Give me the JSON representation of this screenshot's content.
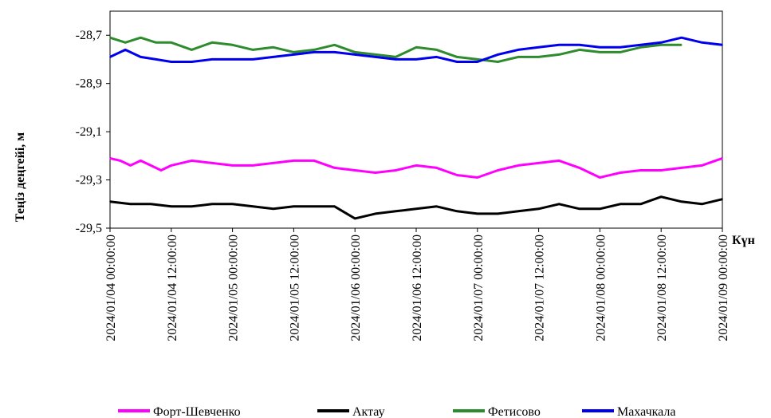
{
  "chart_data": {
    "type": "line",
    "title": "",
    "ylabel": "Теңіз деңгейі, м",
    "xlabel": "Күн",
    "ylim": [
      -29.5,
      -28.6
    ],
    "yticks": [
      -28.7,
      -28.9,
      -29.1,
      -29.3,
      -29.5
    ],
    "ytick_labels": [
      "-28,7",
      "-28,9",
      "-29,1",
      "-29,3",
      "-29,5"
    ],
    "xlim": [
      0,
      120
    ],
    "xtick_labels": [
      "2024/01/04 00:00:00",
      "2024/01/04 12:00:00",
      "2024/01/05 00:00:00",
      "2024/01/05 12:00:00",
      "2024/01/06 00:00:00",
      "2024/01/06 12:00:00",
      "2024/01/07 00:00:00",
      "2024/01/07 12:00:00",
      "2024/01/08 00:00:00",
      "2024/01/08 12:00:00",
      "2024/01/09 00:00:00"
    ],
    "grid": false,
    "legend_position": "bottom",
    "series": [
      {
        "name": "Форт-Шевченко",
        "color": "#ff00ff",
        "x": [
          0,
          2,
          4,
          6,
          8,
          10,
          12,
          16,
          20,
          24,
          28,
          32,
          36,
          40,
          44,
          48,
          52,
          56,
          60,
          64,
          68,
          72,
          76,
          80,
          84,
          88,
          92,
          94,
          96,
          100,
          104,
          108,
          112,
          116,
          120
        ],
        "y": [
          -29.21,
          -29.22,
          -29.24,
          -29.22,
          -29.24,
          -29.26,
          -29.24,
          -29.22,
          -29.23,
          -29.24,
          -29.24,
          -29.23,
          -29.22,
          -29.22,
          -29.25,
          -29.26,
          -29.27,
          -29.26,
          -29.24,
          -29.25,
          -29.28,
          -29.29,
          -29.26,
          -29.24,
          -29.23,
          -29.22,
          -29.25,
          -29.27,
          -29.29,
          -29.27,
          -29.26,
          -29.26,
          -29.25,
          -29.24,
          -29.21
        ]
      },
      {
        "name": "Актау",
        "color": "#000000",
        "x": [
          0,
          4,
          8,
          12,
          16,
          20,
          24,
          28,
          32,
          36,
          40,
          44,
          48,
          52,
          56,
          60,
          64,
          68,
          72,
          76,
          80,
          84,
          88,
          92,
          96,
          100,
          104,
          108,
          112,
          116,
          120
        ],
        "y": [
          -29.39,
          -29.4,
          -29.4,
          -29.41,
          -29.41,
          -29.4,
          -29.4,
          -29.41,
          -29.42,
          -29.41,
          -29.41,
          -29.41,
          -29.46,
          -29.44,
          -29.43,
          -29.42,
          -29.41,
          -29.43,
          -29.44,
          -29.44,
          -29.43,
          -29.42,
          -29.4,
          -29.42,
          -29.42,
          -29.4,
          -29.4,
          -29.37,
          -29.39,
          -29.4,
          -29.38
        ]
      },
      {
        "name": "Фетисово",
        "color": "#2e8b2e",
        "x": [
          0,
          3,
          6,
          9,
          12,
          16,
          20,
          24,
          28,
          32,
          36,
          40,
          44,
          48,
          52,
          56,
          60,
          64,
          68,
          72,
          76,
          80,
          84,
          88,
          92,
          96,
          100,
          104,
          108,
          112
        ],
        "y": [
          -28.71,
          -28.73,
          -28.71,
          -28.73,
          -28.73,
          -28.76,
          -28.73,
          -28.74,
          -28.76,
          -28.75,
          -28.77,
          -28.76,
          -28.74,
          -28.77,
          -28.78,
          -28.79,
          -28.75,
          -28.76,
          -28.79,
          -28.8,
          -28.81,
          -28.79,
          -28.79,
          -28.78,
          -28.76,
          -28.77,
          -28.77,
          -28.75,
          -28.74,
          -28.74
        ]
      },
      {
        "name": "Махачкала",
        "color": "#0000ee",
        "x": [
          0,
          3,
          6,
          9,
          12,
          16,
          20,
          24,
          28,
          32,
          36,
          40,
          44,
          48,
          52,
          56,
          60,
          64,
          68,
          72,
          76,
          80,
          84,
          88,
          92,
          96,
          100,
          104,
          108,
          112,
          116,
          120
        ],
        "y": [
          -28.79,
          -28.76,
          -28.79,
          -28.8,
          -28.81,
          -28.81,
          -28.8,
          -28.8,
          -28.8,
          -28.79,
          -28.78,
          -28.77,
          -28.77,
          -28.78,
          -28.79,
          -28.8,
          -28.8,
          -28.79,
          -28.81,
          -28.81,
          -28.78,
          -28.76,
          -28.75,
          -28.74,
          -28.74,
          -28.75,
          -28.75,
          -28.74,
          -28.73,
          -28.71,
          -28.73,
          -28.74
        ]
      }
    ]
  }
}
